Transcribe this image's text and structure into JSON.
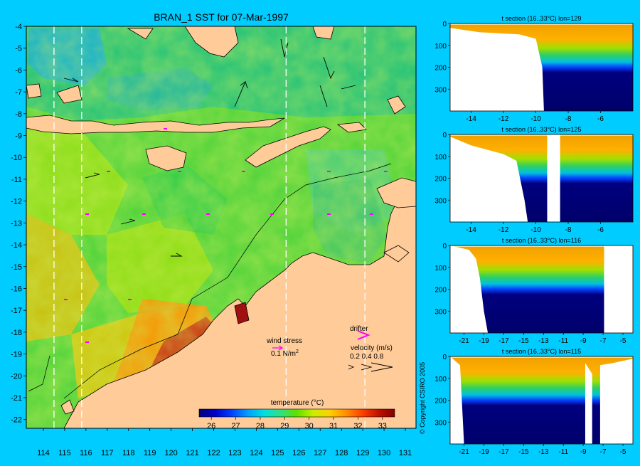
{
  "title": "BRAN_1 SST for 07-Mar-1997",
  "map": {
    "lon_range": [
      113.2,
      131.5
    ],
    "lat_range": [
      -22.4,
      -4.0
    ],
    "x_ticks": [
      114,
      115,
      116,
      117,
      118,
      119,
      120,
      121,
      122,
      123,
      124,
      125,
      126,
      127,
      128,
      129,
      130,
      131
    ],
    "y_ticks": [
      -4,
      -5,
      -6,
      -7,
      -8,
      -9,
      -10,
      -11,
      -12,
      -13,
      -14,
      -15,
      -16,
      -17,
      -18,
      -19,
      -20,
      -21,
      -22
    ],
    "section_lons": [
      114.5,
      115.8,
      125.4,
      129.1
    ]
  },
  "legend": {
    "wind_label": "wind stress",
    "wind_scale": "0.1 N/m",
    "wind_sup": "2",
    "drifter_label": "drifter",
    "velocity_label": "velocity (m/s)",
    "velocity_values": "0.2 0.4 0.8"
  },
  "colorbar": {
    "label": "temperature (°C)",
    "ticks": [
      26,
      27,
      28,
      29,
      30,
      31,
      32,
      33
    ],
    "range": [
      25.5,
      33.5
    ],
    "colors": [
      "#00007f",
      "#0000c8",
      "#0040ff",
      "#00a0ff",
      "#00e0e0",
      "#30e080",
      "#60e000",
      "#c8f000",
      "#ffd000",
      "#ff9000",
      "#ff4000",
      "#c01000",
      "#800000"
    ]
  },
  "copyright": "© Copyright CSIRO 2005",
  "sections": [
    {
      "title": "t section (16..33°C) lon=129",
      "x_ticks": [
        -14,
        -12,
        -10,
        -8,
        -6
      ],
      "x_range": [
        -15.3,
        -4.0
      ],
      "y_ticks": [
        0,
        100,
        200,
        300
      ],
      "y_range": [
        0,
        400
      ]
    },
    {
      "title": "t section (16..33°C) lon=125",
      "x_ticks": [
        -14,
        -12,
        -10,
        -8,
        -6
      ],
      "x_range": [
        -15.3,
        -4.0
      ],
      "y_ticks": [
        0,
        100,
        200,
        300
      ],
      "y_range": [
        0,
        400
      ]
    },
    {
      "title": "t section (16..33°C) lon=116",
      "x_ticks": [
        -21,
        -19,
        -17,
        -15,
        -13,
        -11,
        -9,
        -7,
        -5
      ],
      "x_range": [
        -22.4,
        -4.0
      ],
      "y_ticks": [
        0,
        100,
        200,
        300
      ],
      "y_range": [
        0,
        400
      ]
    },
    {
      "title": "t section (16..33°C) lon=115",
      "x_ticks": [
        -21,
        -19,
        -17,
        -15,
        -13,
        -11,
        -9,
        -7,
        -5
      ],
      "x_range": [
        -22.4,
        -4.0
      ],
      "y_ticks": [
        0,
        100,
        200,
        300
      ],
      "y_range": [
        0,
        400
      ]
    }
  ]
}
